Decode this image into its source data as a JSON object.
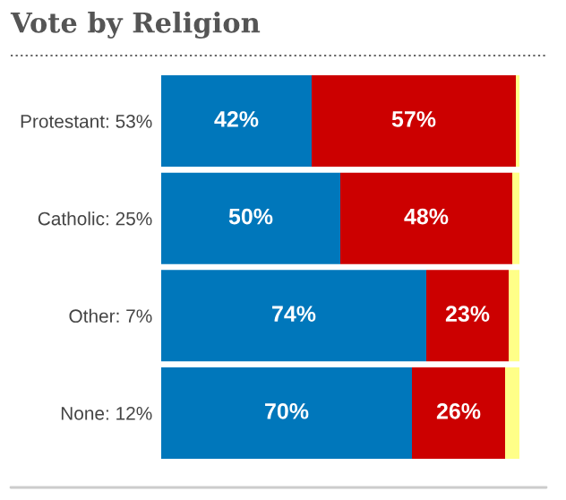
{
  "chart_data": {
    "type": "bar",
    "orientation": "horizontal",
    "stacked": true,
    "title": "Vote by Religion",
    "categories": [
      "Protestant: 53%",
      "Catholic: 25%",
      "Other: 7%",
      "None: 12%"
    ],
    "series": [
      {
        "color": "#0077bb",
        "values": [
          42,
          50,
          74,
          70
        ],
        "value_labels": [
          "42%",
          "50%",
          "74%",
          "70%"
        ]
      },
      {
        "color": "#cc0000",
        "values": [
          57,
          48,
          23,
          26
        ],
        "value_labels": [
          "57%",
          "48%",
          "23%",
          "26%"
        ]
      },
      {
        "color": "#ffff88",
        "values": [
          1,
          2,
          3,
          4
        ],
        "value_labels": [
          null,
          null,
          null,
          null
        ]
      }
    ],
    "legend": false
  }
}
